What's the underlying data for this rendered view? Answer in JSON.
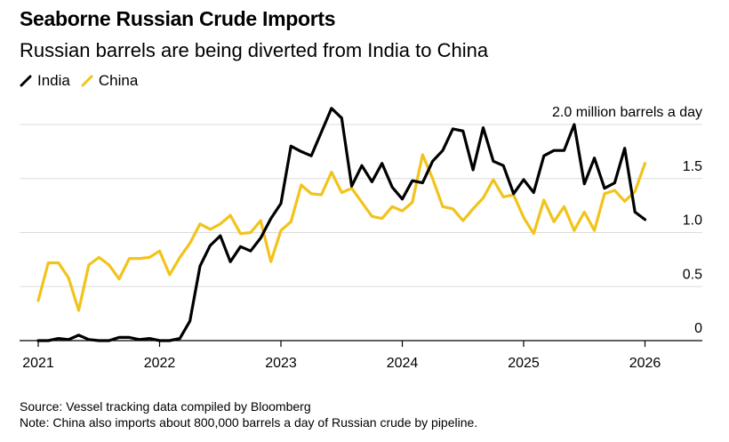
{
  "title": "Seaborne Russian Crude Imports",
  "subtitle": "Russian barrels are being diverted from India to China",
  "footer": {
    "source": "Source: Vessel tracking data compiled by Bloomberg",
    "note": "Note: China also imports about 800,000 barrels a day of Russian crude by pipeline."
  },
  "colors": {
    "India": "#000000",
    "China": "#f2c31b",
    "grid": "#dddddd",
    "axis": "#000000"
  },
  "chart_data": {
    "type": "line",
    "xlabel": "",
    "ylabel": "",
    "ylim": [
      0,
      2.0
    ],
    "xlim": [
      2021.0,
      2026.5
    ],
    "y_ticks": [
      0,
      0.5,
      1.0,
      1.5,
      2.0
    ],
    "y_tick_labels": [
      "0",
      "0.5",
      "1.0",
      "1.5",
      "2.0 million barrels a day"
    ],
    "x_ticks": [
      2021,
      2022,
      2023,
      2024,
      2025,
      2026
    ],
    "x_tick_labels": [
      "2021",
      "2022",
      "2023",
      "2024",
      "2025",
      "2026"
    ],
    "grid": true,
    "legend": "top-left",
    "x": [
      2021.0,
      2021.083,
      2021.167,
      2021.25,
      2021.333,
      2021.417,
      2021.5,
      2021.583,
      2021.667,
      2021.75,
      2021.833,
      2021.917,
      2022.0,
      2022.083,
      2022.167,
      2022.25,
      2022.333,
      2022.417,
      2022.5,
      2022.583,
      2022.667,
      2022.75,
      2022.833,
      2022.917,
      2023.0,
      2023.083,
      2023.167,
      2023.25,
      2023.333,
      2023.417,
      2023.5,
      2023.583,
      2023.667,
      2023.75,
      2023.833,
      2023.917,
      2024.0,
      2024.083,
      2024.167,
      2024.25,
      2024.333,
      2024.417,
      2024.5,
      2024.583,
      2024.667,
      2024.75,
      2024.833,
      2024.917,
      2025.0,
      2025.083,
      2025.167,
      2025.25,
      2025.333,
      2025.417,
      2025.5,
      2025.583,
      2025.667,
      2025.75,
      2025.833,
      2025.917,
      2026.0
    ],
    "series": [
      {
        "name": "India",
        "values": [
          0.0,
          0.0,
          0.02,
          0.01,
          0.05,
          0.01,
          0.0,
          0.0,
          0.03,
          0.03,
          0.01,
          0.02,
          0.0,
          0.0,
          0.02,
          0.18,
          0.69,
          0.88,
          0.97,
          0.73,
          0.87,
          0.83,
          0.95,
          1.13,
          1.27,
          1.8,
          1.75,
          1.71,
          1.93,
          2.15,
          2.06,
          1.43,
          1.62,
          1.47,
          1.64,
          1.42,
          1.31,
          1.48,
          1.46,
          1.66,
          1.76,
          1.96,
          1.94,
          1.58,
          1.97,
          1.66,
          1.62,
          1.36,
          1.49,
          1.37,
          1.71,
          1.76,
          1.76,
          2.0,
          1.45,
          1.69,
          1.41,
          1.46,
          1.78,
          1.19,
          1.12
        ]
      },
      {
        "name": "China",
        "values": [
          0.37,
          0.72,
          0.72,
          0.58,
          0.28,
          0.7,
          0.77,
          0.7,
          0.57,
          0.76,
          0.76,
          0.77,
          0.83,
          0.61,
          0.77,
          0.9,
          1.08,
          1.03,
          1.08,
          1.16,
          0.99,
          1.0,
          1.11,
          0.73,
          1.02,
          1.1,
          1.44,
          1.36,
          1.35,
          1.56,
          1.37,
          1.41,
          1.28,
          1.15,
          1.13,
          1.24,
          1.2,
          1.28,
          1.72,
          1.5,
          1.24,
          1.22,
          1.11,
          1.22,
          1.32,
          1.49,
          1.33,
          1.35,
          1.14,
          0.99,
          1.3,
          1.1,
          1.24,
          1.02,
          1.19,
          1.02,
          1.36,
          1.39,
          1.29,
          1.38,
          1.64
        ]
      }
    ]
  }
}
